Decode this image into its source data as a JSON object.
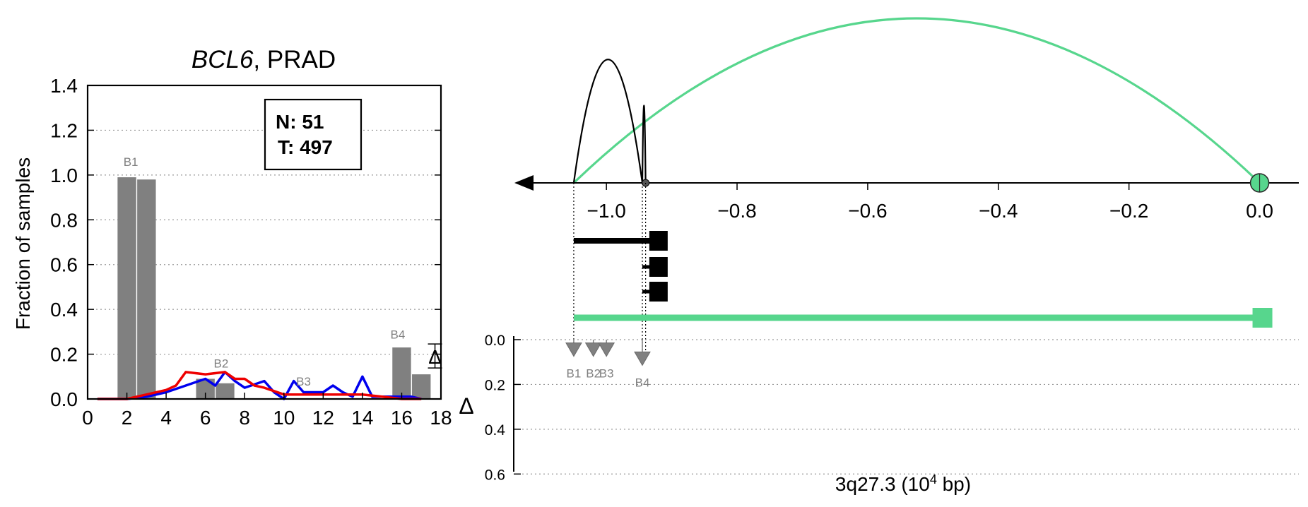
{
  "chart_data": [
    {
      "type": "bar",
      "title": "BCL6, PRAD",
      "title_gene": "BCL6",
      "title_rest": ", PRAD",
      "xlabel": "",
      "ylabel": "Fraction of samples",
      "xlim": [
        0,
        18
      ],
      "ylim": [
        0,
        1.4
      ],
      "xticks": [
        "0",
        "2",
        "4",
        "6",
        "8",
        "10",
        "12",
        "14",
        "16",
        "18"
      ],
      "yticks": [
        "0.0",
        "0.2",
        "0.4",
        "0.6",
        "0.8",
        "1.0",
        "1.2",
        "1.4"
      ],
      "grid": "horizontal dotted",
      "legend_box": {
        "lines": [
          "N: 51",
          "T: 497"
        ],
        "placement": "top-right"
      },
      "bars": [
        {
          "x": 2.0,
          "value": 0.99
        },
        {
          "x": 3.0,
          "value": 0.98
        },
        {
          "x": 6.0,
          "value": 0.09
        },
        {
          "x": 7.0,
          "value": 0.07
        },
        {
          "x": 16.0,
          "value": 0.23
        },
        {
          "x": 17.0,
          "value": 0.11
        }
      ],
      "bar_group_labels": [
        {
          "label": "B1",
          "x": 2.2,
          "y": 1.04
        },
        {
          "label": "B2",
          "x": 6.8,
          "y": 0.14
        },
        {
          "label": "B3",
          "x": 11.0,
          "y": 0.06
        },
        {
          "label": "B4",
          "x": 15.8,
          "y": 0.27
        }
      ],
      "delta_marker": {
        "label": "Δ",
        "x": 16.4,
        "y": 0.17
      },
      "series": [
        {
          "color": "#0000ee",
          "x": [
            0.5,
            2,
            3,
            4,
            5,
            6,
            6.5,
            7,
            7.5,
            8,
            9,
            9.5,
            10,
            10.5,
            11,
            12,
            12.5,
            13,
            13.5,
            14,
            14.5,
            15,
            15.5,
            16,
            16.5,
            17
          ],
          "values": [
            0.0,
            0.0,
            0.01,
            0.03,
            0.06,
            0.09,
            0.06,
            0.12,
            0.08,
            0.05,
            0.08,
            0.03,
            0.0,
            0.08,
            0.03,
            0.03,
            0.06,
            0.03,
            0.01,
            0.1,
            0.01,
            0.01,
            0.01,
            0.01,
            0.01,
            0.0
          ]
        },
        {
          "color": "#ee0000",
          "x": [
            0.5,
            2,
            2.5,
            3,
            4,
            4.5,
            5,
            6,
            7,
            7.5,
            8,
            8.5,
            9,
            10,
            11,
            12,
            13,
            14,
            15,
            16,
            17
          ],
          "values": [
            0.0,
            0.0,
            0.01,
            0.02,
            0.04,
            0.06,
            0.12,
            0.11,
            0.12,
            0.09,
            0.09,
            0.06,
            0.05,
            0.02,
            0.02,
            0.02,
            0.02,
            0.02,
            0.01,
            0.0,
            0.0
          ]
        }
      ]
    },
    {
      "type": "line",
      "title": "",
      "xlabel": "3q27.3 (10^4 bp)",
      "xlabel_base": "3q27.3 (10",
      "xlabel_exp": "4",
      "xlabel_unit": " bp)",
      "xlim": [
        -1.13,
        0.06
      ],
      "xticks": [
        "−1.0",
        "−0.8",
        "−0.6",
        "−0.4",
        "−0.2",
        "0.0"
      ],
      "xtick_values": [
        -1.0,
        -0.8,
        -0.6,
        -0.4,
        -0.2,
        0.0
      ],
      "colors": {
        "green": "#57d68d",
        "black": "#000000"
      },
      "arcs": [
        {
          "from": -1.05,
          "to": 0.0,
          "peak": 1.0,
          "color": "#57d68d"
        },
        {
          "from": -1.05,
          "to": -0.945,
          "peak": 0.75,
          "color": "#000000"
        },
        {
          "from": -0.945,
          "to": -0.94,
          "peak": 0.47,
          "color": "#000000"
        }
      ],
      "transcripts": [
        {
          "start": -1.05,
          "end": -0.93,
          "color": "#000000"
        },
        {
          "start": -0.945,
          "end": -0.93,
          "color": "#000000"
        },
        {
          "start": -0.945,
          "end": -0.93,
          "color": "#000000"
        },
        {
          "start": -1.05,
          "end": 0.0,
          "color": "#57d68d"
        }
      ],
      "delta_axis": {
        "label": "Δ",
        "ylim": [
          0,
          0.7
        ],
        "yticks": [
          "0.0",
          "0.2",
          "0.4",
          "0.6"
        ],
        "ytick_values": [
          0.0,
          0.2,
          0.4,
          0.6
        ],
        "markers": [
          {
            "label": "B1",
            "x": -1.05,
            "value": 0.04
          },
          {
            "label": "B2",
            "x": -1.02,
            "value": 0.04
          },
          {
            "label": "B3",
            "x": -1.0,
            "value": 0.04
          },
          {
            "label": "B4",
            "x": -0.945,
            "value": 0.08
          }
        ]
      }
    }
  ]
}
